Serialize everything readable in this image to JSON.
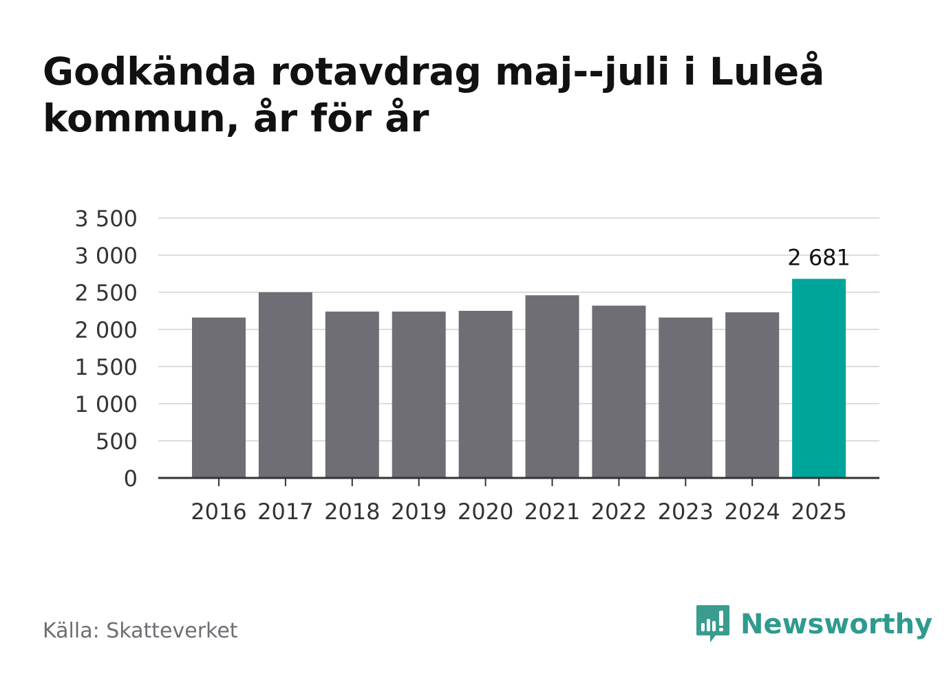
{
  "title": "Godkända rotavdrag maj--juli i Luleå kommun, år för år",
  "source": "Källa: Skatteverket",
  "brand": {
    "name": "Newsworthy",
    "icon": "newsworthy-logo-icon",
    "color": "#2f9a8e"
  },
  "colors": {
    "bar": "#6f6e74",
    "highlight": "#00a59a",
    "grid": "#dddddd",
    "axis": "#333333"
  },
  "chart_data": {
    "type": "bar",
    "categories": [
      "2016",
      "2017",
      "2018",
      "2019",
      "2020",
      "2021",
      "2022",
      "2023",
      "2024",
      "2025"
    ],
    "values": [
      2160,
      2500,
      2240,
      2240,
      2250,
      2460,
      2320,
      2160,
      2230,
      2681
    ],
    "highlight_index": 9,
    "data_labels": [
      {
        "index": 9,
        "text": "2 681"
      }
    ],
    "yticks": [
      {
        "value": 0,
        "label": "0"
      },
      {
        "value": 500,
        "label": "500"
      },
      {
        "value": 1000,
        "label": "1 000"
      },
      {
        "value": 1500,
        "label": "1 500"
      },
      {
        "value": 2000,
        "label": "2 000"
      },
      {
        "value": 2500,
        "label": "2 500"
      },
      {
        "value": 3000,
        "label": "3 000"
      },
      {
        "value": 3500,
        "label": "3 500"
      }
    ],
    "ylim": [
      0,
      3500
    ],
    "grid": true,
    "legend": "none"
  }
}
